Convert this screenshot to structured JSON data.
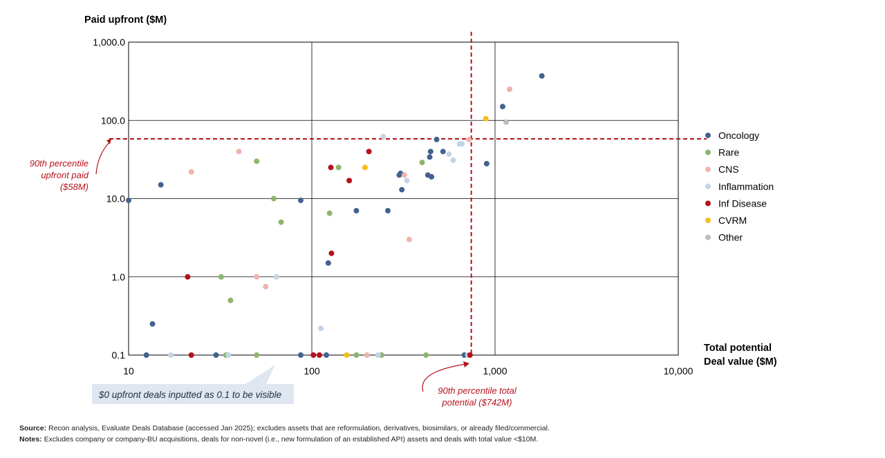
{
  "chart_data": {
    "type": "scatter",
    "ylabel": "Paid upfront ($M)",
    "xlabel": [
      "Total potential",
      "Deal value ($M)"
    ],
    "x_scale": "log",
    "y_scale": "log",
    "xlim": [
      10,
      10000
    ],
    "ylim": [
      0.1,
      1000
    ],
    "x_ticks": [
      10,
      100,
      1000,
      10000
    ],
    "x_tick_labels": [
      "10",
      "100",
      "1,000",
      "10,000"
    ],
    "y_ticks": [
      0.1,
      1,
      10,
      100,
      1000
    ],
    "y_tick_labels": [
      "0.1",
      "1.0",
      "10.0",
      "100.0",
      "1,000.0"
    ],
    "grid": true,
    "legend_position": "right",
    "reference_lines": {
      "upfront_90th": 58,
      "total_90th": 742
    },
    "series": [
      {
        "name": "Oncology",
        "color": "#44628e",
        "points": [
          [
            10,
            9.5
          ],
          [
            12.5,
            0.1
          ],
          [
            13.5,
            0.25
          ],
          [
            15,
            15
          ],
          [
            30,
            0.1
          ],
          [
            87,
            9.5
          ],
          [
            87,
            0.1
          ],
          [
            120,
            0.1
          ],
          [
            123,
            1.5
          ],
          [
            175,
            7
          ],
          [
            260,
            7
          ],
          [
            300,
            20
          ],
          [
            305,
            21
          ],
          [
            310,
            13
          ],
          [
            430,
            20
          ],
          [
            440,
            34
          ],
          [
            445,
            40
          ],
          [
            450,
            19
          ],
          [
            480,
            57
          ],
          [
            520,
            40
          ],
          [
            680,
            0.1
          ],
          [
            900,
            28
          ],
          [
            1100,
            150
          ],
          [
            1800,
            370
          ]
        ]
      },
      {
        "name": "Rare",
        "color": "#8db56e",
        "points": [
          [
            32,
            1
          ],
          [
            34,
            0.1
          ],
          [
            36,
            0.5
          ],
          [
            50,
            30
          ],
          [
            50,
            0.1
          ],
          [
            62,
            10
          ],
          [
            68,
            5
          ],
          [
            125,
            6.5
          ],
          [
            140,
            25
          ],
          [
            175,
            0.1
          ],
          [
            240,
            0.1
          ],
          [
            400,
            29
          ],
          [
            420,
            0.1
          ]
        ]
      },
      {
        "name": "CNS",
        "color": "#efb3ad",
        "points": [
          [
            22,
            22
          ],
          [
            40,
            40
          ],
          [
            50,
            1
          ],
          [
            56,
            0.75
          ],
          [
            200,
            0.1
          ],
          [
            320,
            20
          ],
          [
            340,
            3
          ],
          [
            720,
            57
          ],
          [
            1200,
            250
          ]
        ]
      },
      {
        "name": "Inflammation",
        "color": "#c4d4e6",
        "points": [
          [
            17,
            0.1
          ],
          [
            35,
            0.1
          ],
          [
            64,
            1
          ],
          [
            112,
            0.22
          ],
          [
            230,
            0.1
          ],
          [
            245,
            62
          ],
          [
            330,
            17
          ],
          [
            560,
            37
          ],
          [
            590,
            31
          ],
          [
            640,
            50
          ],
          [
            660,
            50
          ],
          [
            710,
            0.1
          ]
        ]
      },
      {
        "name": "Inf Disease",
        "color": "#b5121b",
        "points": [
          [
            21,
            1
          ],
          [
            22,
            0.1
          ],
          [
            102,
            0.1
          ],
          [
            110,
            0.1
          ],
          [
            127,
            25
          ],
          [
            128,
            2
          ],
          [
            160,
            17
          ],
          [
            205,
            40
          ],
          [
            730,
            0.1
          ]
        ]
      },
      {
        "name": "CVRM",
        "color": "#f5bf1a",
        "points": [
          [
            155,
            0.1
          ],
          [
            195,
            25
          ],
          [
            890,
            105
          ]
        ]
      },
      {
        "name": "Other",
        "color": "#bdbdbd",
        "points": [
          [
            1150,
            95
          ]
        ]
      }
    ],
    "annotations": {
      "upfront_label": [
        "90th percentile",
        "upfront paid",
        "($58M)"
      ],
      "total_label": [
        "90th percentile total",
        "potential ($742M)"
      ],
      "zero_note": "$0 upfront deals inputted as 0.1 to be visible"
    }
  },
  "footnotes": {
    "source_label": "Source:",
    "source_text": " Recon analysis, Evaluate Deals Database (accessed Jan 2025); excludes assets that are reformulation, derivatives, biosimilars, or already filed/commercial.",
    "notes_label": "Notes:",
    "notes_text": " Excludes company or company-BU acquisitions, deals for non-novel (i.e., new formulation of an established API) assets and deals with total value <$10M."
  }
}
